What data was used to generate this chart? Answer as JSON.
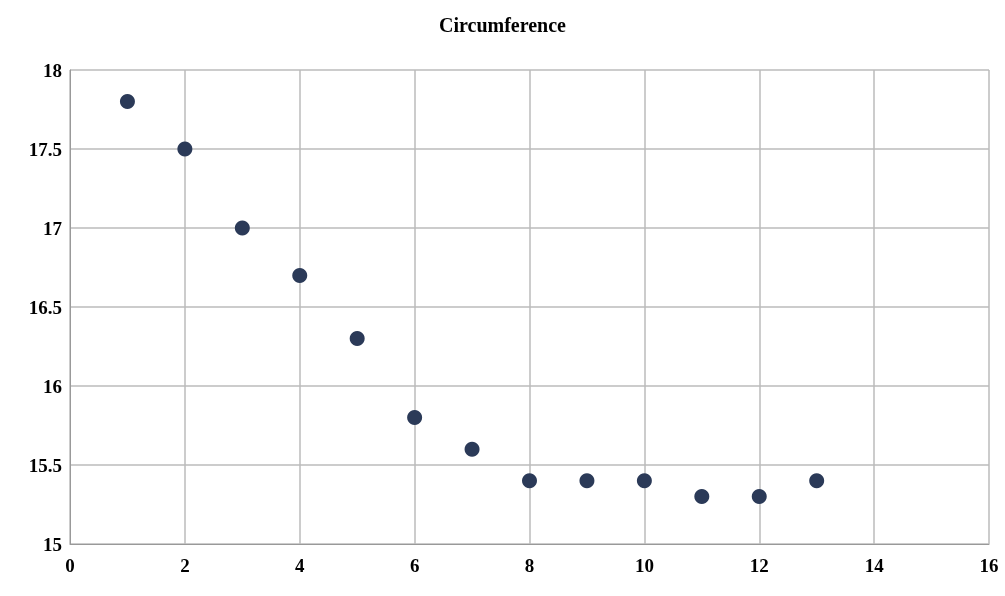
{
  "chart_data": {
    "type": "scatter",
    "title": "Circumference",
    "x": [
      1,
      2,
      3,
      4,
      5,
      6,
      7,
      8,
      9,
      10,
      11,
      12,
      13
    ],
    "series": [
      {
        "color": "#2b3a58",
        "values": [
          17.8,
          17.5,
          17.0,
          16.7,
          16.3,
          15.8,
          15.6,
          15.4,
          15.4,
          15.4,
          15.3,
          15.3,
          15.4
        ]
      }
    ],
    "xlim": [
      0,
      16
    ],
    "xticks": [
      0,
      2,
      4,
      6,
      8,
      10,
      12,
      14,
      16
    ],
    "ylim": [
      15,
      18
    ],
    "yticks": [
      15,
      15.5,
      16,
      16.5,
      17,
      17.5,
      18
    ],
    "grid": true,
    "marker": "circle"
  }
}
